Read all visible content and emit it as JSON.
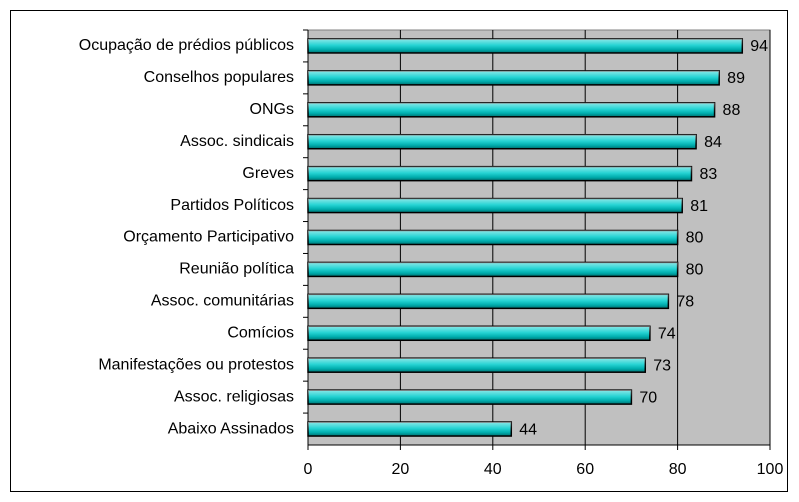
{
  "chart_data": {
    "type": "bar",
    "categories": [
      "Ocupação de prédios públicos",
      "Conselhos populares",
      "ONGs",
      "Assoc. sindicais",
      "Greves",
      "Partidos Políticos",
      "Orçamento Participativo",
      "Reunião política",
      "Assoc. comunitárias",
      "Comícios",
      "Manifestações ou protestos",
      "Assoc. religiosas",
      "Abaixo Assinados"
    ],
    "values": [
      94,
      89,
      88,
      84,
      83,
      81,
      80,
      80,
      78,
      74,
      73,
      70,
      44
    ],
    "color": "#00cccc",
    "xlim": [
      0,
      100
    ],
    "xticks": [
      0,
      20,
      40,
      60,
      80,
      100
    ],
    "grid": true
  }
}
